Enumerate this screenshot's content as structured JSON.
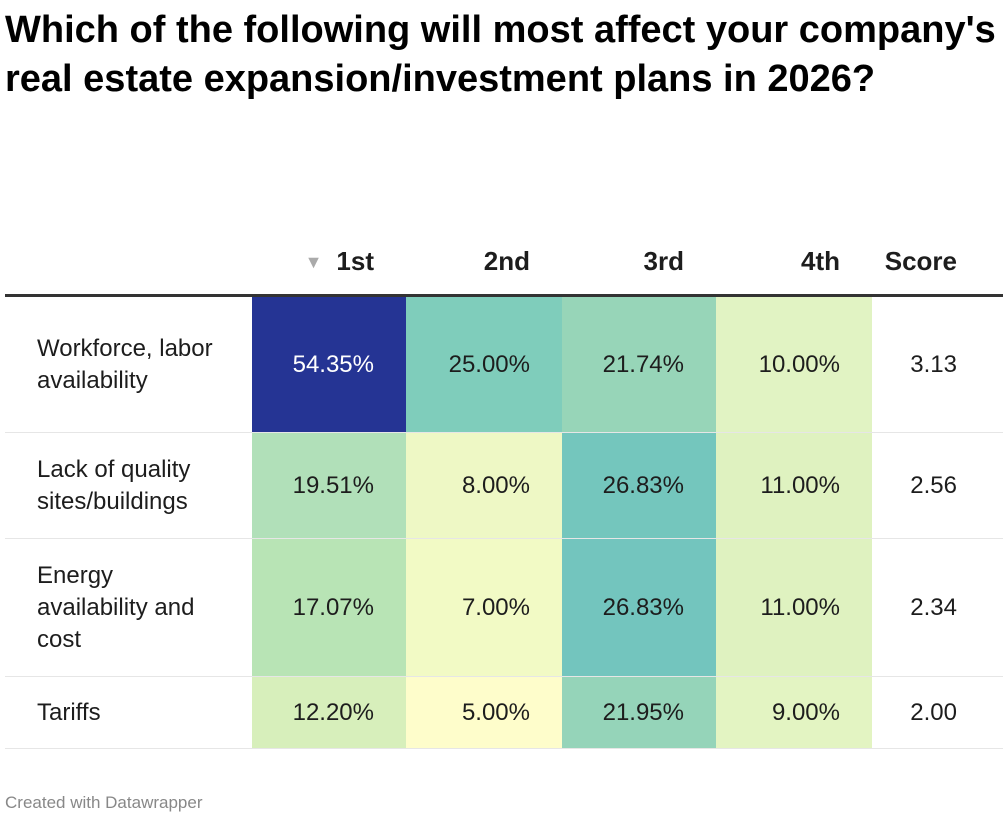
{
  "title": "Which of the following will most affect your company's real estate expansion/investment plans in 2026?",
  "columns": [
    "",
    "1st",
    "2nd",
    "3rd",
    "4th",
    "Score"
  ],
  "sort_icon": "triangle-down-icon",
  "rows": [
    {
      "label": "Workforce, labor availability",
      "cells": [
        "54.35%",
        "25.00%",
        "21.74%",
        "10.00%"
      ],
      "colors": [
        "#253494",
        "#7fcdbb",
        "#97d5b8",
        "#e1f3c3"
      ],
      "text_colors": [
        "#ffffff",
        "#1d1d1d",
        "#1d1d1d",
        "#1d1d1d"
      ],
      "score": "3.13"
    },
    {
      "label": "Lack of quality sites/buildings",
      "cells": [
        "19.51%",
        "8.00%",
        "26.83%",
        "11.00%"
      ],
      "colors": [
        "#b1e0b9",
        "#eef8c5",
        "#74c6bd",
        "#dff2c0"
      ],
      "text_colors": [
        "#1d1d1d",
        "#1d1d1d",
        "#1d1d1d",
        "#1d1d1d"
      ],
      "score": "2.56"
    },
    {
      "label": "Energy availability and cost",
      "cells": [
        "17.07%",
        "7.00%",
        "26.83%",
        "11.00%"
      ],
      "colors": [
        "#b8e4b5",
        "#f2fac5",
        "#73c5be",
        "#dff2c0"
      ],
      "text_colors": [
        "#1d1d1d",
        "#1d1d1d",
        "#1d1d1d",
        "#1d1d1d"
      ],
      "score": "2.34"
    },
    {
      "label": "Tariffs",
      "cells": [
        "12.20%",
        "5.00%",
        "21.95%",
        "9.00%"
      ],
      "colors": [
        "#d7efbb",
        "#fefdcb",
        "#95d4b9",
        "#e3f4c2"
      ],
      "text_colors": [
        "#1d1d1d",
        "#1d1d1d",
        "#1d1d1d",
        "#1d1d1d"
      ],
      "score": "2.00"
    }
  ],
  "footer": "Created with Datawrapper"
}
